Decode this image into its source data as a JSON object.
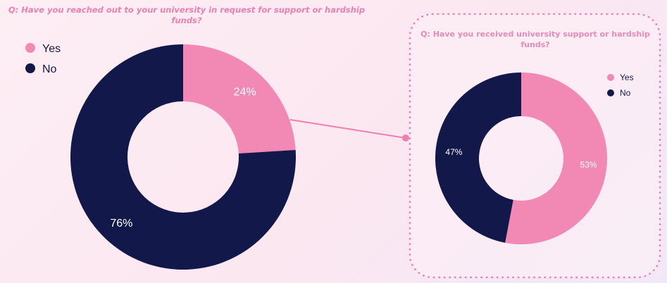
{
  "chart_data": [
    {
      "type": "pie",
      "title_lines": [
        "Q: Have you reached out to your university in request for support or hardship",
        "funds?"
      ],
      "categories": [
        "Yes",
        "No"
      ],
      "values": [
        24,
        76
      ],
      "labels": [
        "24%",
        "76%"
      ],
      "colors": [
        "#f189b4",
        "#13184a"
      ],
      "legend": "top-left"
    },
    {
      "type": "pie",
      "title_lines": [
        "Q: Have you received university support or hardship",
        "funds?"
      ],
      "categories": [
        "Yes",
        "No"
      ],
      "values": [
        53,
        47
      ],
      "labels": [
        "53%",
        "47%"
      ],
      "colors": [
        "#f189b4",
        "#13184a"
      ],
      "legend": "top-right"
    }
  ],
  "colors": {
    "title": "#ee7fb0",
    "title_right": "#e88ab7",
    "connector": "#ee7fb0",
    "frame": "#ee7fb0",
    "frame_fill": "#fdf0f6"
  }
}
